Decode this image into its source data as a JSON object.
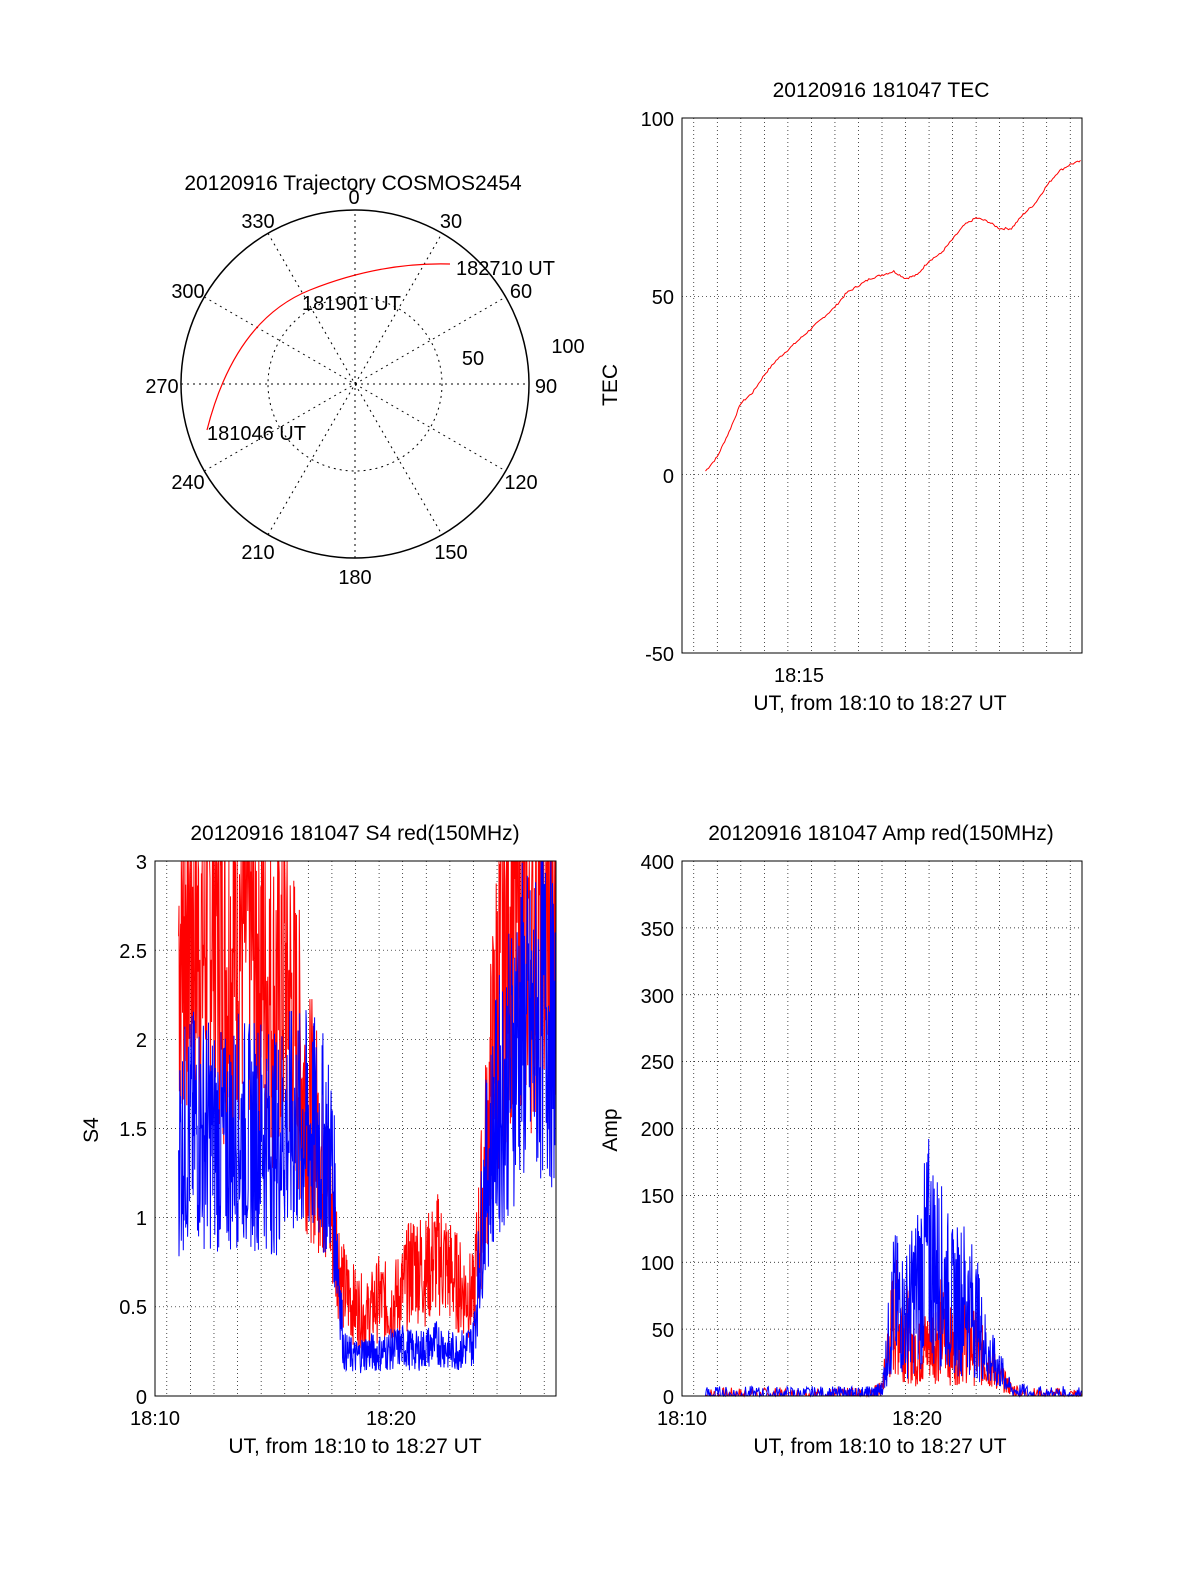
{
  "colors": {
    "red": "#ff0000",
    "blue": "#0000ff",
    "axis": "#000000",
    "grid": "#000000"
  },
  "polar": {
    "title": "20120916 Trajectory COSMOS2454",
    "azimuth_labels": [
      "0",
      "30",
      "60",
      "90",
      "120",
      "150",
      "180",
      "210",
      "240",
      "270",
      "300",
      "330"
    ],
    "ring_labels": [
      "50",
      "100"
    ],
    "annotations": [
      "182710 UT",
      "181901 UT",
      "181046 UT"
    ]
  },
  "chart_data": [
    {
      "type": "line",
      "title": "20120916 181047 TEC",
      "xlabel": "UT, from 18:10 to 18:27 UT",
      "ylabel": "TEC",
      "ylim": [
        -50,
        100
      ],
      "yticks": [
        "100",
        "50",
        "0",
        "-50"
      ],
      "xtick_labels": [
        "18:15"
      ],
      "grid": true,
      "series": [
        {
          "color": "#ff0000",
          "x_minutes": [
            11.0,
            11.5,
            12.0,
            12.5,
            13.0,
            13.5,
            14.0,
            14.5,
            15.0,
            15.5,
            16.0,
            16.5,
            17.0,
            17.5,
            18.0,
            18.5,
            19.0,
            19.5,
            20.0,
            20.5,
            21.0,
            21.5,
            22.0,
            22.5,
            23.0,
            23.5,
            24.0,
            24.5,
            25.0,
            25.5,
            26.0,
            26.5,
            27.0
          ],
          "values": [
            1,
            5,
            12,
            20,
            23,
            28,
            32,
            35,
            38,
            41,
            44,
            47,
            51,
            53,
            55,
            56,
            57,
            55,
            56,
            60,
            62,
            66,
            70,
            72,
            71,
            69,
            69,
            73,
            76,
            81,
            85,
            87,
            88
          ]
        }
      ]
    },
    {
      "type": "line",
      "title": "20120916 181047 S4 red(150MHz)",
      "xlabel": "UT, from 18:10 to 18:27 UT",
      "ylabel": "S4",
      "ylim": [
        0,
        3
      ],
      "yticks": [
        "3",
        "2.5",
        "2",
        "1.5",
        "1",
        "0.5",
        "0"
      ],
      "xtick_labels": [
        "18:10",
        "18:20"
      ],
      "grid": true,
      "series": [
        {
          "color": "#ff0000",
          "x_minutes": [
            11.0,
            11.5,
            12.0,
            12.5,
            13.0,
            13.5,
            14.0,
            14.5,
            15.0,
            15.5,
            16.0,
            16.5,
            17.0,
            17.5,
            18.0,
            18.5,
            19.0,
            19.5,
            20.0,
            20.5,
            21.0,
            21.5,
            22.0,
            22.5,
            23.0,
            23.5,
            24.0,
            24.5,
            25.0,
            25.5,
            26.0,
            26.5,
            27.0
          ],
          "values": [
            2.6,
            2.8,
            2.5,
            2.9,
            2.4,
            2.7,
            2.6,
            2.5,
            2.2,
            2.4,
            2.0,
            1.6,
            1.4,
            1.0,
            0.6,
            0.5,
            0.45,
            0.55,
            0.5,
            0.6,
            0.75,
            0.7,
            0.8,
            0.7,
            0.6,
            0.55,
            1.3,
            2.2,
            2.7,
            2.9,
            2.6,
            2.7,
            2.5
          ]
        },
        {
          "color": "#0000ff",
          "x_minutes": [
            11.0,
            11.5,
            12.0,
            12.5,
            13.0,
            13.5,
            14.0,
            14.5,
            15.0,
            15.5,
            16.0,
            16.5,
            17.0,
            17.5,
            18.0,
            18.5,
            19.0,
            19.5,
            20.0,
            20.5,
            21.0,
            21.5,
            22.0,
            22.5,
            23.0,
            23.5,
            24.0,
            24.5,
            25.0,
            25.5,
            26.0,
            26.5,
            27.0
          ],
          "values": [
            1.4,
            1.5,
            1.5,
            1.45,
            1.4,
            1.5,
            1.45,
            1.5,
            1.4,
            1.5,
            1.5,
            1.5,
            1.45,
            1.3,
            0.25,
            0.22,
            0.25,
            0.24,
            0.26,
            0.28,
            0.25,
            0.27,
            0.3,
            0.25,
            0.26,
            0.3,
            1.2,
            1.6,
            1.8,
            2.1,
            2.0,
            2.2,
            2.0
          ]
        }
      ]
    },
    {
      "type": "line",
      "title": "20120916 181047 Amp red(150MHz)",
      "xlabel": "UT, from 18:10 to 18:27 UT",
      "ylabel": "Amp",
      "ylim": [
        0,
        400
      ],
      "yticks": [
        "400",
        "350",
        "300",
        "250",
        "200",
        "150",
        "100",
        "50",
        "0"
      ],
      "xtick_labels": [
        "18:10",
        "18:20"
      ],
      "grid": true,
      "series": [
        {
          "color": "#ff0000",
          "x_minutes": [
            11.0,
            12.0,
            13.0,
            14.0,
            15.0,
            16.0,
            17.0,
            17.5,
            18.0,
            18.5,
            19.0,
            19.5,
            20.0,
            20.5,
            21.0,
            21.5,
            22.0,
            22.5,
            23.0,
            23.5,
            24.0,
            25.0,
            26.0,
            27.0
          ],
          "values": [
            0,
            0,
            0,
            0,
            0,
            0,
            0,
            0,
            0,
            5,
            60,
            50,
            30,
            40,
            50,
            35,
            45,
            35,
            25,
            15,
            5,
            0,
            0,
            0
          ]
        },
        {
          "color": "#0000ff",
          "x_minutes": [
            11.0,
            12.0,
            13.0,
            14.0,
            15.0,
            16.0,
            17.0,
            17.5,
            18.0,
            18.5,
            19.0,
            19.5,
            20.0,
            20.5,
            21.0,
            21.5,
            22.0,
            22.5,
            23.0,
            23.5,
            24.0,
            25.0,
            26.0,
            27.0
          ],
          "values": [
            1,
            1,
            1,
            1,
            1,
            1,
            1,
            1,
            1,
            5,
            70,
            60,
            80,
            110,
            90,
            70,
            75,
            60,
            30,
            20,
            5,
            1,
            1,
            1
          ]
        }
      ]
    }
  ]
}
